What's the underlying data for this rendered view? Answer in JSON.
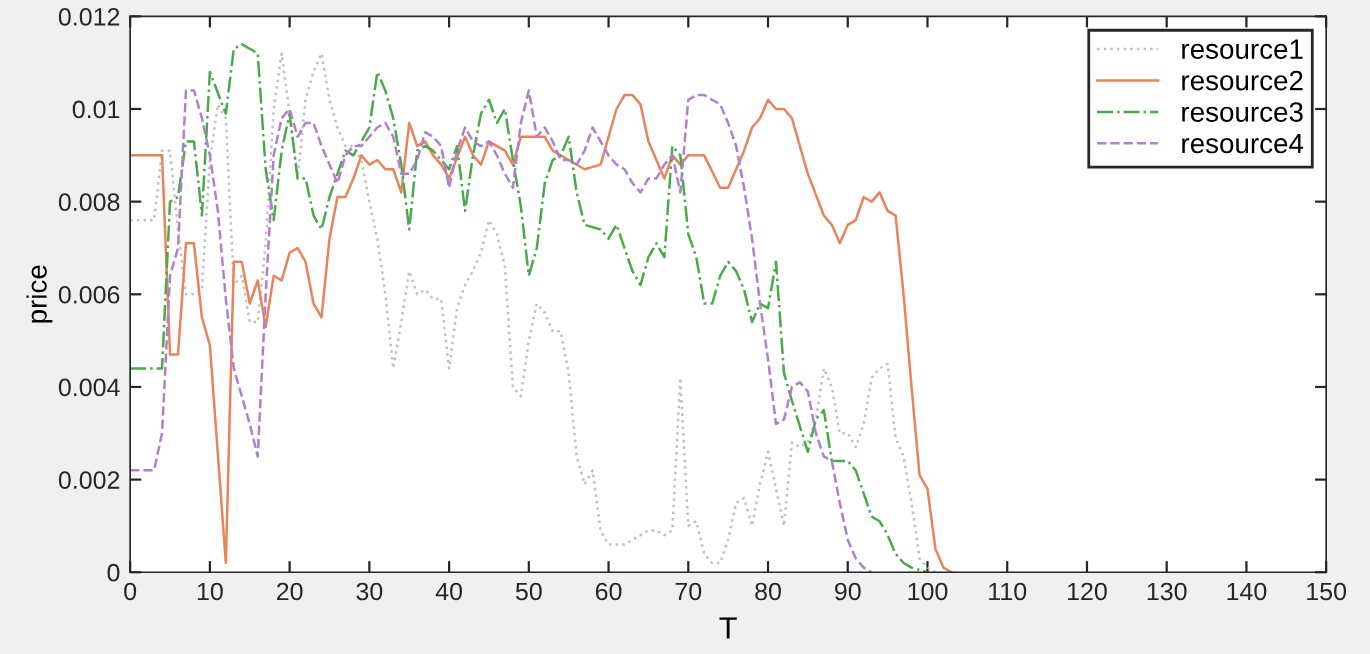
{
  "chart_data": {
    "type": "line",
    "xlabel": "T",
    "ylabel": "price",
    "xlim": [
      0,
      150
    ],
    "ylim": [
      0,
      0.012
    ],
    "xticks": [
      0,
      10,
      20,
      30,
      40,
      50,
      60,
      70,
      80,
      90,
      100,
      110,
      120,
      130,
      140,
      150
    ],
    "yticks": [
      0,
      0.002,
      0.004,
      0.006,
      0.008,
      0.01,
      0.012
    ],
    "grid": false,
    "legend": "top right",
    "marker": "none",
    "series": [
      {
        "name": "resource1",
        "color": "#c0c0c0",
        "line_style": "dotted",
        "x": [
          0,
          3,
          4,
          5,
          6,
          7,
          8,
          9,
          10,
          11,
          12,
          13,
          14,
          15,
          16,
          17,
          18,
          19,
          20,
          21,
          22,
          23,
          24,
          25,
          26,
          27,
          28,
          29,
          30,
          31,
          32,
          33,
          34,
          35,
          36,
          37,
          38,
          39,
          40,
          41,
          42,
          43,
          44,
          45,
          46,
          47,
          48,
          49,
          50,
          51,
          52,
          53,
          54,
          55,
          56,
          57,
          58,
          59,
          60,
          61,
          62,
          63,
          64,
          65,
          66,
          67,
          68,
          69,
          70,
          71,
          72,
          73,
          74,
          75,
          76,
          77,
          78,
          79,
          80,
          81,
          82,
          83,
          84,
          85,
          86,
          87,
          88,
          89,
          90,
          91,
          92,
          93,
          94,
          95,
          96,
          97,
          98,
          99,
          100,
          101
        ],
        "values": [
          0.0076,
          0.0076,
          0.0091,
          0.0091,
          0.0074,
          0.006,
          0.006,
          0.0061,
          0.0089,
          0.0101,
          0.0098,
          0.0062,
          0.0064,
          0.0054,
          0.0054,
          0.0071,
          0.01,
          0.0112,
          0.0099,
          0.0085,
          0.0102,
          0.0108,
          0.0112,
          0.0102,
          0.0096,
          0.0092,
          0.0092,
          0.0089,
          0.008,
          0.0072,
          0.006,
          0.0044,
          0.0054,
          0.0065,
          0.006,
          0.0061,
          0.0059,
          0.0059,
          0.0044,
          0.0057,
          0.0062,
          0.0065,
          0.0069,
          0.0076,
          0.0073,
          0.0066,
          0.004,
          0.0038,
          0.005,
          0.0058,
          0.0056,
          0.0052,
          0.0052,
          0.0043,
          0.0025,
          0.0019,
          0.0022,
          0.0009,
          0.0006,
          0.0006,
          0.0006,
          0.0007,
          0.0008,
          0.0009,
          0.0009,
          0.0008,
          0.0009,
          0.0042,
          0.001,
          0.0011,
          0.0004,
          0.0002,
          0.0002,
          0.0007,
          0.0015,
          0.0016,
          0.001,
          0.0019,
          0.0026,
          0.0018,
          0.001,
          0.0028,
          0.0027,
          0.0028,
          0.0033,
          0.0044,
          0.004,
          0.003,
          0.003,
          0.0027,
          0.0032,
          0.0042,
          0.0044,
          0.0045,
          0.0029,
          0.0025,
          0.0015,
          0.0003,
          0.0001,
          0
        ]
      },
      {
        "name": "resource2",
        "color": "#e8845a",
        "line_style": "solid",
        "x": [
          0,
          4,
          5,
          6,
          7,
          8,
          9,
          10,
          12,
          13,
          14,
          15,
          16,
          17,
          18,
          19,
          20,
          21,
          22,
          23,
          24,
          25,
          26,
          27,
          28,
          29,
          30,
          31,
          32,
          33,
          34,
          35,
          36,
          37,
          38,
          39,
          40,
          42,
          43,
          44,
          45,
          46,
          47,
          48,
          49,
          50,
          52,
          53,
          55,
          57,
          59,
          60,
          61,
          62,
          63,
          64,
          65,
          66,
          67,
          68,
          69,
          70,
          72,
          74,
          75,
          76,
          77,
          78,
          79,
          80,
          81,
          82,
          83,
          85,
          87,
          88,
          89,
          90,
          91,
          92,
          93,
          94,
          95,
          96,
          97,
          98,
          99,
          100,
          101,
          102,
          103
        ],
        "values": [
          0.009,
          0.009,
          0.0047,
          0.0047,
          0.0071,
          0.0071,
          0.0055,
          0.0049,
          0.0002,
          0.0067,
          0.0067,
          0.0058,
          0.0063,
          0.0053,
          0.0064,
          0.0063,
          0.0069,
          0.007,
          0.0067,
          0.0058,
          0.0055,
          0.0072,
          0.0081,
          0.0081,
          0.0085,
          0.009,
          0.0088,
          0.0089,
          0.0087,
          0.0087,
          0.0082,
          0.0097,
          0.0092,
          0.0093,
          0.009,
          0.0088,
          0.0085,
          0.0094,
          0.009,
          0.0088,
          0.0093,
          0.0092,
          0.0091,
          0.0088,
          0.0094,
          0.0094,
          0.0094,
          0.0091,
          0.0089,
          0.0087,
          0.0088,
          0.0094,
          0.01,
          0.0103,
          0.0103,
          0.0101,
          0.0093,
          0.0089,
          0.0085,
          0.009,
          0.0088,
          0.009,
          0.009,
          0.0083,
          0.0083,
          0.0087,
          0.0091,
          0.0096,
          0.0098,
          0.0102,
          0.01,
          0.01,
          0.0098,
          0.0086,
          0.0077,
          0.0075,
          0.0071,
          0.0075,
          0.0076,
          0.0081,
          0.008,
          0.0082,
          0.0078,
          0.0077,
          0.006,
          0.004,
          0.0021,
          0.0018,
          0.0005,
          0.0001,
          0
        ]
      },
      {
        "name": "resource3",
        "color": "#4aaa4a",
        "line_style": "dashdot",
        "x": [
          0,
          4,
          5,
          6,
          7,
          8,
          9,
          10,
          12,
          13,
          14,
          15,
          16,
          17,
          18,
          19,
          20,
          21,
          22,
          23,
          24,
          25,
          27,
          28,
          30,
          31,
          32,
          33,
          34,
          35,
          36,
          37,
          38,
          40,
          41,
          42,
          43,
          44,
          45,
          46,
          47,
          48,
          49,
          50,
          51,
          52,
          53,
          54,
          55,
          56,
          57,
          59,
          60,
          61,
          62,
          63,
          64,
          65,
          66,
          67,
          68,
          69,
          70,
          71,
          72,
          73,
          74,
          75,
          76,
          77,
          78,
          79,
          80,
          81,
          82,
          83,
          85,
          86,
          87,
          88,
          90,
          91,
          92,
          93,
          94,
          95,
          96,
          97,
          98,
          100
        ],
        "values": [
          0.0044,
          0.0044,
          0.008,
          0.0081,
          0.0093,
          0.0093,
          0.0077,
          0.0108,
          0.0099,
          0.0113,
          0.0114,
          0.0113,
          0.0112,
          0.0087,
          0.0076,
          0.0091,
          0.0099,
          0.0085,
          0.0085,
          0.0077,
          0.0074,
          0.0081,
          0.0091,
          0.009,
          0.0096,
          0.0108,
          0.0104,
          0.0098,
          0.0088,
          0.0074,
          0.0091,
          0.0092,
          0.0091,
          0.0087,
          0.0092,
          0.0078,
          0.009,
          0.0099,
          0.0102,
          0.0097,
          0.01,
          0.0089,
          0.0079,
          0.0064,
          0.007,
          0.0084,
          0.0089,
          0.009,
          0.0094,
          0.0082,
          0.0075,
          0.0074,
          0.0072,
          0.0075,
          0.007,
          0.0065,
          0.0062,
          0.0068,
          0.0071,
          0.0068,
          0.0092,
          0.009,
          0.0073,
          0.0068,
          0.0058,
          0.0058,
          0.0064,
          0.0067,
          0.0065,
          0.0061,
          0.0054,
          0.0058,
          0.0057,
          0.0067,
          0.0043,
          0.0037,
          0.0026,
          0.0033,
          0.0035,
          0.0024,
          0.0024,
          0.0022,
          0.0017,
          0.0012,
          0.0011,
          0.0008,
          0.0004,
          0.0002,
          0.0001,
          0
        ]
      },
      {
        "name": "resource4",
        "color": "#b07fd0",
        "line_style": "dashed",
        "x": [
          0,
          3,
          4,
          5,
          6,
          7,
          8,
          9,
          10,
          11,
          12,
          13,
          14,
          15,
          16,
          17,
          18,
          19,
          20,
          21,
          22,
          23,
          24,
          25,
          26,
          27,
          28,
          29,
          30,
          31,
          32,
          33,
          34,
          35,
          36,
          37,
          38,
          39,
          40,
          41,
          42,
          43,
          44,
          45,
          46,
          47,
          48,
          49,
          50,
          51,
          52,
          53,
          54,
          55,
          56,
          57,
          58,
          59,
          60,
          61,
          62,
          63,
          64,
          65,
          66,
          67,
          68,
          69,
          70,
          71,
          72,
          73,
          74,
          75,
          76,
          77,
          78,
          79,
          80,
          81,
          82,
          83,
          84,
          85,
          86,
          87,
          88,
          89,
          90,
          91,
          92,
          93
        ],
        "values": [
          0.0022,
          0.0022,
          0.003,
          0.0064,
          0.007,
          0.0104,
          0.0104,
          0.0098,
          0.009,
          0.0078,
          0.0059,
          0.0044,
          0.0038,
          0.0032,
          0.0025,
          0.006,
          0.009,
          0.0098,
          0.01,
          0.0094,
          0.0097,
          0.0097,
          0.0092,
          0.0088,
          0.0084,
          0.009,
          0.0092,
          0.0092,
          0.0094,
          0.0096,
          0.0097,
          0.0094,
          0.0086,
          0.0086,
          0.0089,
          0.0095,
          0.0094,
          0.0092,
          0.0083,
          0.0091,
          0.0096,
          0.0093,
          0.0092,
          0.0093,
          0.009,
          0.0086,
          0.0083,
          0.0097,
          0.0104,
          0.0094,
          0.0096,
          0.0093,
          0.0089,
          0.0089,
          0.0088,
          0.0091,
          0.0096,
          0.0093,
          0.009,
          0.0088,
          0.0087,
          0.0084,
          0.0082,
          0.0085,
          0.0085,
          0.0088,
          0.009,
          0.0082,
          0.0102,
          0.0103,
          0.0103,
          0.0102,
          0.0101,
          0.0097,
          0.0092,
          0.0083,
          0.0072,
          0.0058,
          0.0046,
          0.0032,
          0.0033,
          0.004,
          0.0041,
          0.0039,
          0.003,
          0.0025,
          0.0024,
          0.0015,
          0.0007,
          0.0003,
          0.0001,
          0
        ]
      }
    ]
  }
}
